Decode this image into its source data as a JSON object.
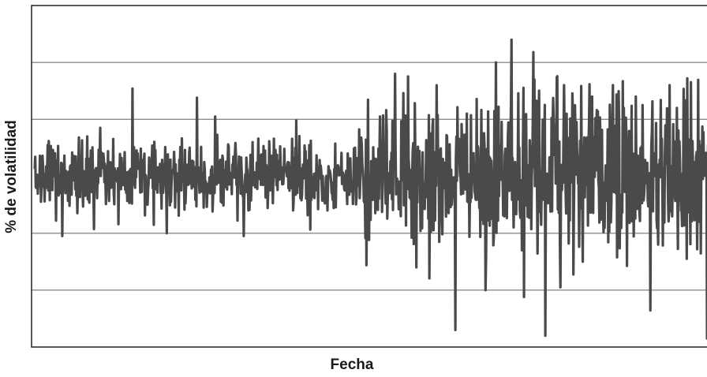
{
  "chart_data": {
    "type": "line",
    "title": "",
    "xlabel": "Fecha",
    "ylabel": "% de volatilidad",
    "ylim": [
      -3,
      3
    ],
    "grid": {
      "horizontal": true,
      "vertical": false,
      "y_lines": [
        -2,
        -1,
        1,
        2
      ]
    },
    "legend": "none",
    "colors": {
      "series": "#4a4a4a",
      "grid": "#8c8c8c",
      "frame": "#222222",
      "background": "#ffffff"
    },
    "seed": 7,
    "series": [
      {
        "name": "",
        "n_points": 1300,
        "values_shape": "volatility-clustering noise around 0; larger swings in the second half",
        "spikes": [
          {
            "index": 17,
            "value": 0.55
          },
          {
            "index": 37,
            "value": -1.05
          },
          {
            "index": 70,
            "value": 0.7
          },
          {
            "index": 87,
            "value": 0.85
          },
          {
            "index": 150,
            "value": -0.5
          },
          {
            "index": 176,
            "value": -1.0
          },
          {
            "index": 225,
            "value": -0.55
          },
          {
            "index": 240,
            "value": 1.05
          },
          {
            "index": 278,
            "value": -1.05
          },
          {
            "index": 290,
            "value": 0.6
          },
          {
            "index": 390,
            "value": -0.6
          },
          {
            "index": 460,
            "value": 1.05
          },
          {
            "index": 480,
            "value": 1.8
          },
          {
            "index": 490,
            "value": 0.55
          },
          {
            "index": 508,
            "value": -1.6
          },
          {
            "index": 530,
            "value": 1.0
          },
          {
            "index": 560,
            "value": -2.7
          },
          {
            "index": 575,
            "value": 1.1
          },
          {
            "index": 600,
            "value": -2.0
          },
          {
            "index": 635,
            "value": 2.4
          },
          {
            "index": 665,
            "value": 1.7
          },
          {
            "index": 680,
            "value": -2.8
          },
          {
            "index": 700,
            "value": -1.95
          },
          {
            "index": 705,
            "value": 1.6
          },
          {
            "index": 730,
            "value": -1.5
          },
          {
            "index": 770,
            "value": 1.6
          },
          {
            "index": 800,
            "value": 1.4
          },
          {
            "index": 830,
            "value": -1.2
          },
          {
            "index": 845,
            "value": 1.6
          },
          {
            "index": 855,
            "value": 1.2
          }
        ]
      }
    ]
  }
}
